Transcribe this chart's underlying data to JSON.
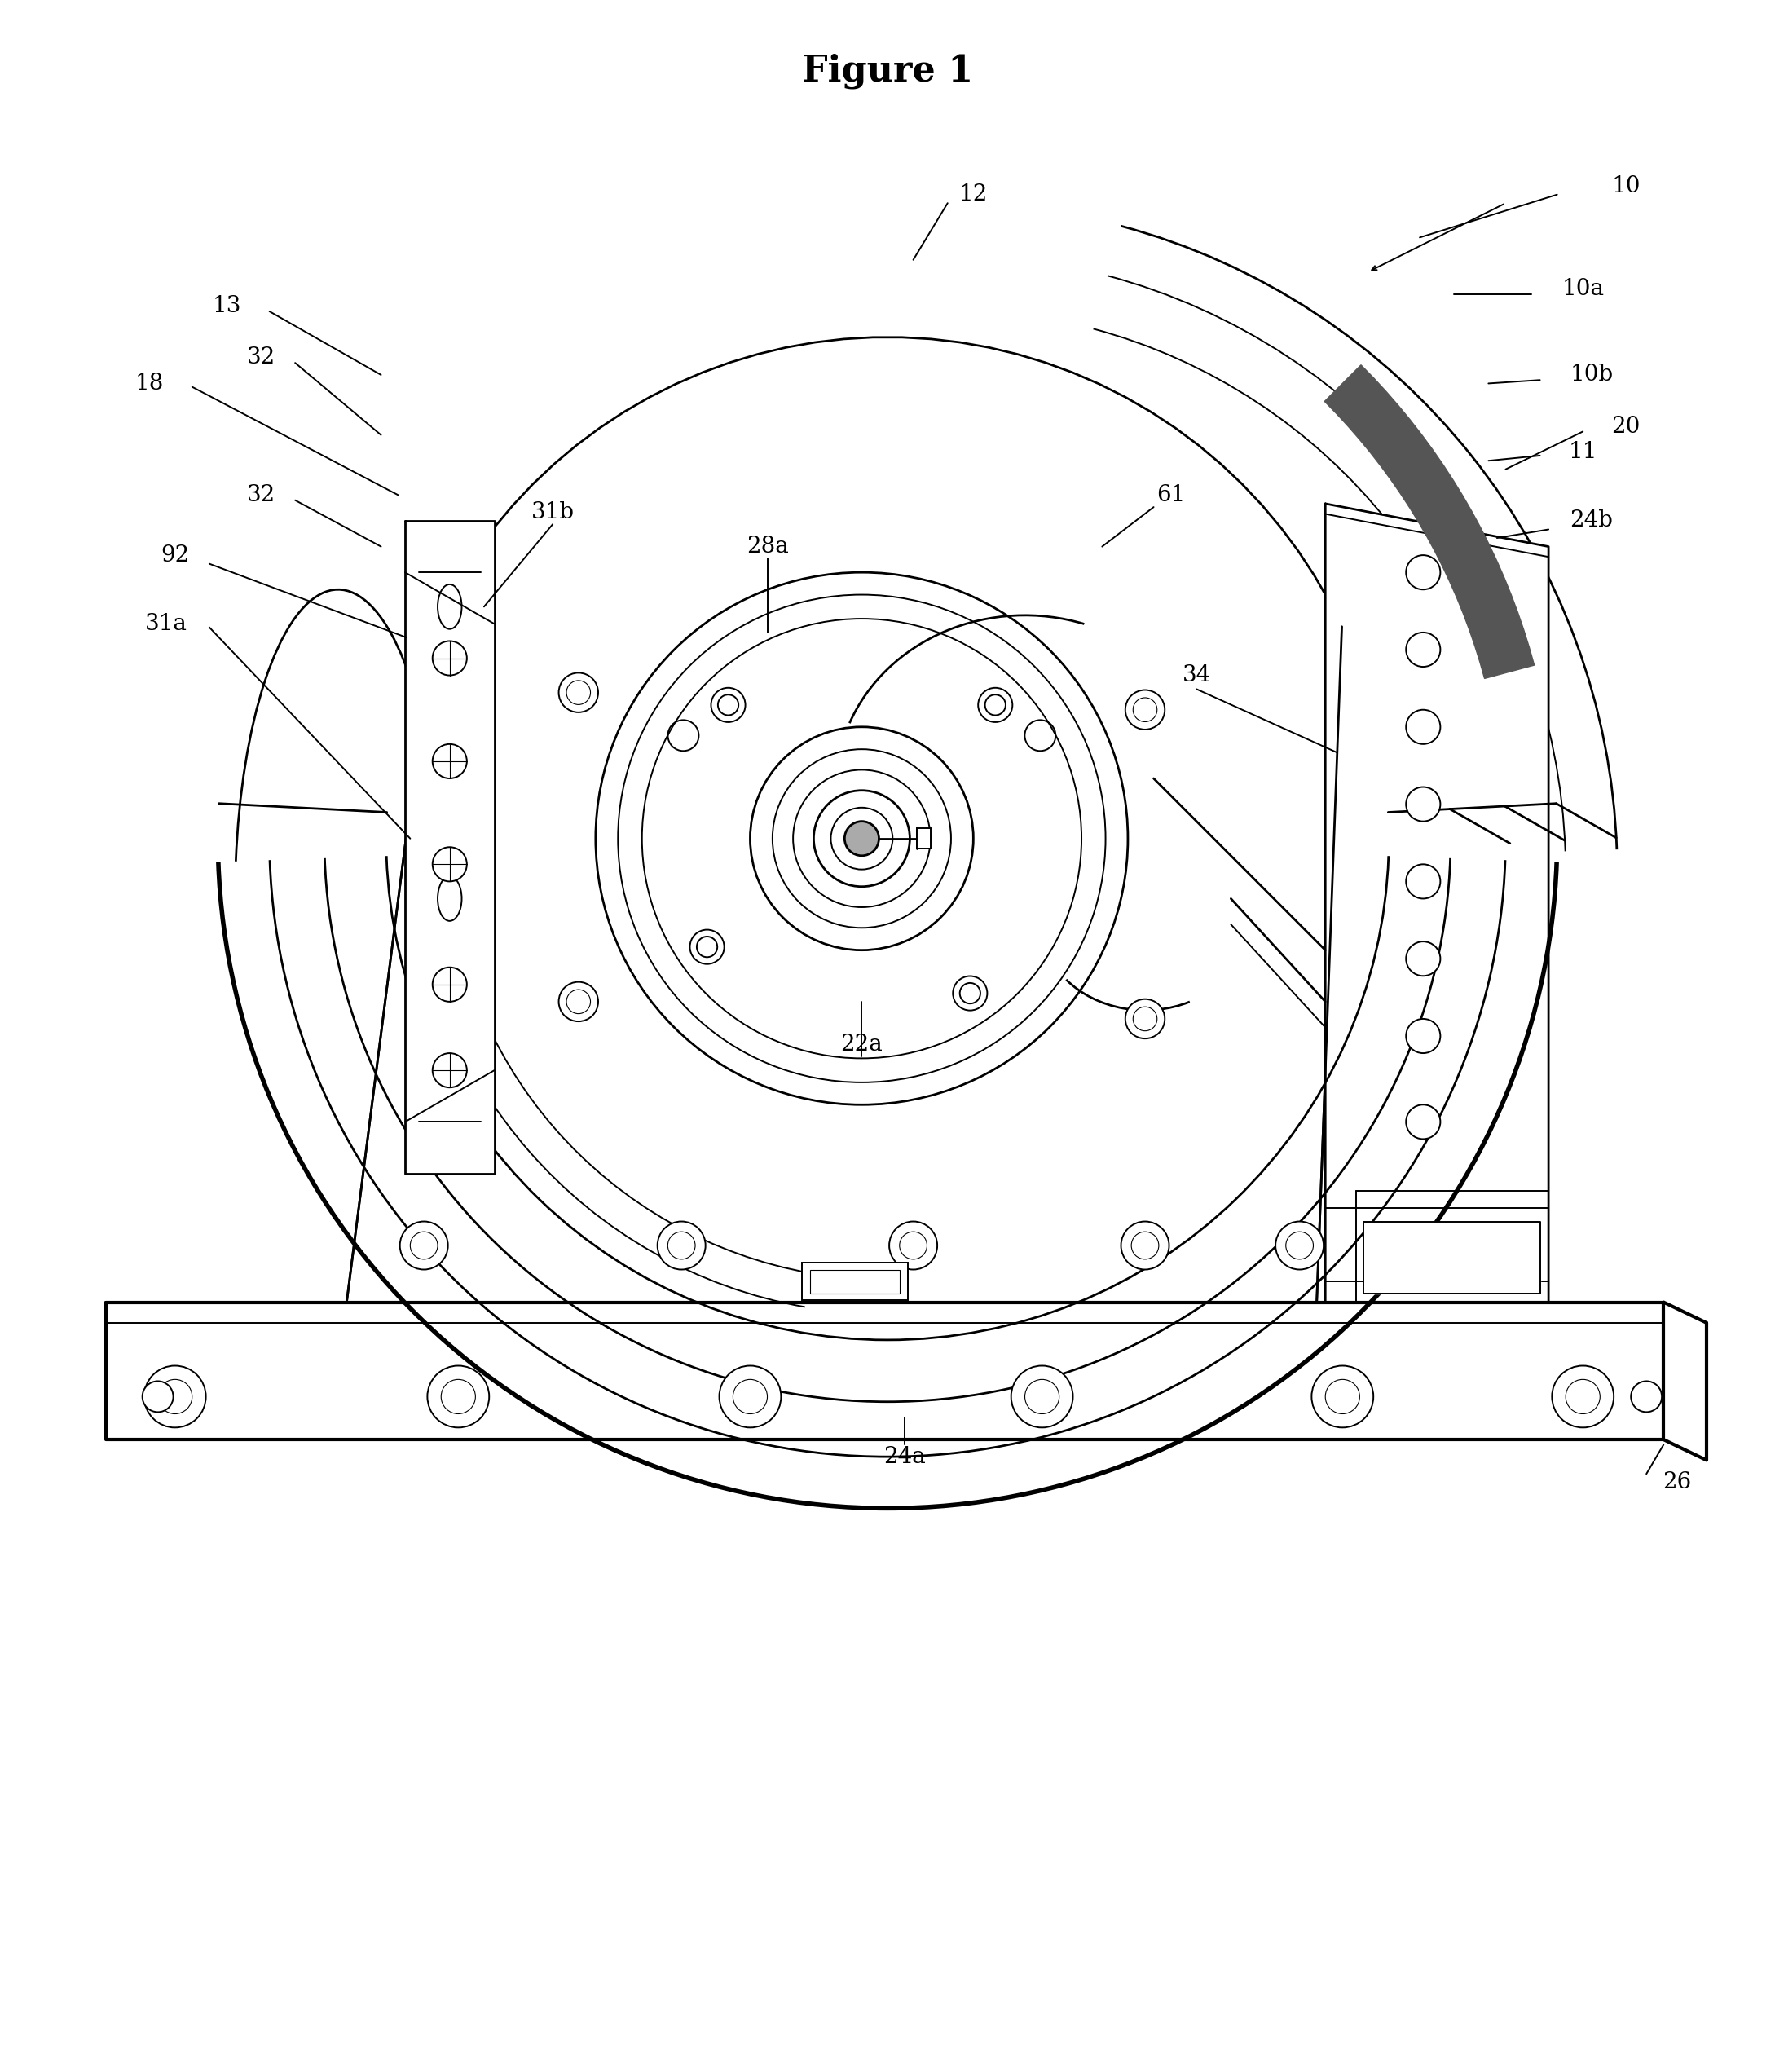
{
  "title": "Figure 1",
  "title_fontsize": 32,
  "title_fontweight": "bold",
  "bg_color": "#ffffff",
  "line_color": "#000000",
  "fig_width": 21.78,
  "fig_height": 25.42,
  "label_fontsize": 20,
  "labels": [
    [
      "10",
      9.3,
      1.05
    ],
    [
      "10a",
      9.05,
      1.65
    ],
    [
      "10b",
      9.1,
      2.15
    ],
    [
      "11",
      9.05,
      2.6
    ],
    [
      "12",
      5.5,
      1.1
    ],
    [
      "13",
      1.15,
      1.75
    ],
    [
      "18",
      0.7,
      2.2
    ],
    [
      "20",
      9.3,
      2.45
    ],
    [
      "22a",
      4.85,
      6.05
    ],
    [
      "24a",
      5.1,
      8.45
    ],
    [
      "24b",
      9.1,
      3.0
    ],
    [
      "26",
      9.6,
      8.6
    ],
    [
      "28a",
      4.3,
      3.15
    ],
    [
      "31a",
      0.8,
      3.6
    ],
    [
      "31b",
      3.05,
      2.95
    ],
    [
      "32",
      1.35,
      2.05
    ],
    [
      "32",
      1.35,
      2.85
    ],
    [
      "34",
      6.8,
      3.9
    ],
    [
      "61",
      6.65,
      2.85
    ],
    [
      "92",
      0.85,
      3.2
    ]
  ]
}
